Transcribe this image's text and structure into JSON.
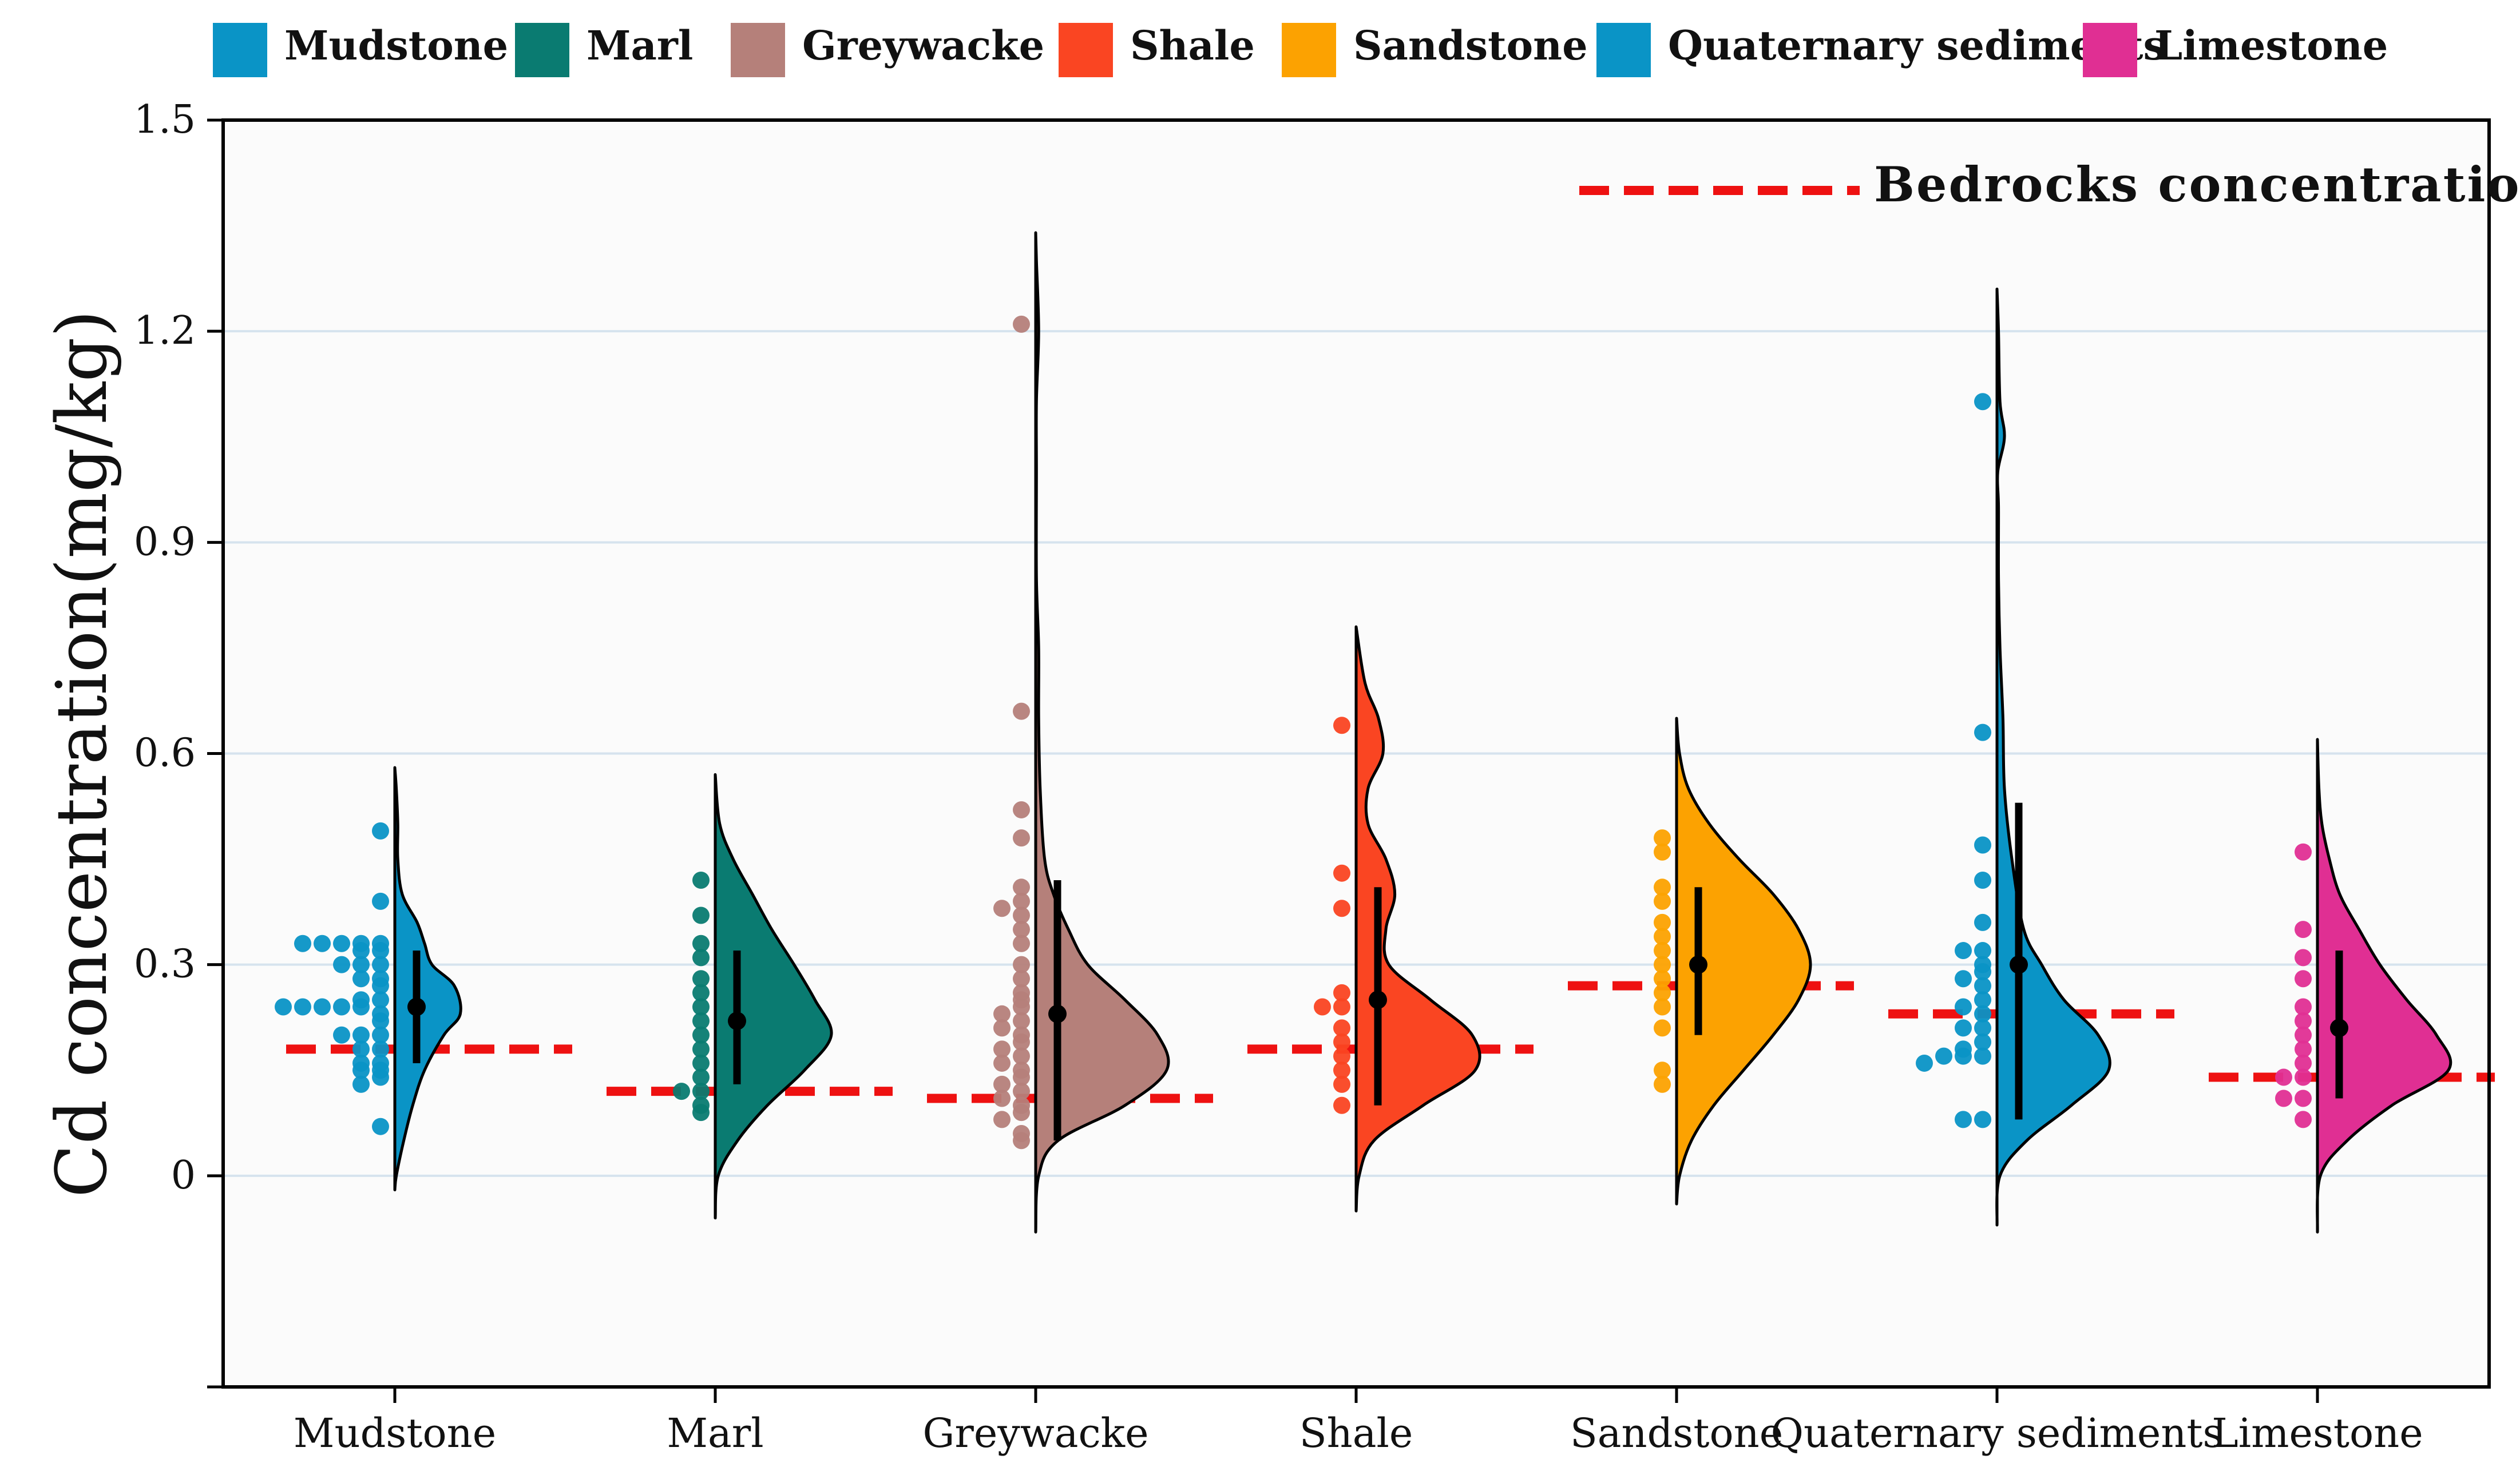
{
  "chart_data": {
    "type": "violin",
    "title": "",
    "xlabel": "",
    "ylabel": "Cd concentration(mg/kg)",
    "ylim": [
      -0.3,
      1.5
    ],
    "yticks": [
      "0",
      "0.3",
      "0.6",
      "0.9",
      "1.2",
      "1.5"
    ],
    "grid": "horizontal",
    "legend_position": "top",
    "bedrock_legend_label": "Bedrocks concentration",
    "bedrock_color": "#ee1111",
    "categories": [
      {
        "name": "Mudstone",
        "color": "#0a94c6",
        "mean": 0.24,
        "whisker": [
          0.16,
          0.32
        ],
        "bedrock": 0.18,
        "density_y": [
          -0.02,
          0.0,
          0.05,
          0.1,
          0.15,
          0.2,
          0.23,
          0.27,
          0.3,
          0.33,
          0.36,
          0.4,
          0.45,
          0.5,
          0.55,
          0.58
        ],
        "density_w": [
          0,
          0.01,
          0.06,
          0.12,
          0.2,
          0.33,
          0.44,
          0.4,
          0.25,
          0.2,
          0.15,
          0.05,
          0.02,
          0.02,
          0.01,
          0
        ],
        "points": [
          0.23,
          0.24,
          0.24,
          0.24,
          0.24,
          0.24,
          0.22,
          0.33,
          0.33,
          0.33,
          0.33,
          0.33,
          0.32,
          0.32,
          0.3,
          0.3,
          0.3,
          0.28,
          0.28,
          0.27,
          0.25,
          0.25,
          0.2,
          0.2,
          0.2,
          0.18,
          0.18,
          0.16,
          0.16,
          0.15,
          0.15,
          0.14,
          0.13,
          0.39,
          0.49,
          0.07
        ]
      },
      {
        "name": "Marl",
        "color": "#0a7b71",
        "mean": 0.22,
        "whisker": [
          0.13,
          0.32
        ],
        "bedrock": 0.12,
        "density_y": [
          -0.06,
          0.0,
          0.05,
          0.1,
          0.15,
          0.2,
          0.25,
          0.3,
          0.35,
          0.4,
          0.45,
          0.5,
          0.57
        ],
        "density_w": [
          0,
          0.02,
          0.15,
          0.35,
          0.6,
          0.78,
          0.67,
          0.53,
          0.38,
          0.25,
          0.12,
          0.03,
          0
        ],
        "points": [
          0.12,
          0.42,
          0.37,
          0.33,
          0.31,
          0.28,
          0.26,
          0.24,
          0.22,
          0.2,
          0.18,
          0.16,
          0.14,
          0.12,
          0.1,
          0.09
        ]
      },
      {
        "name": "Greywacke",
        "color": "#b5807a",
        "mean": 0.23,
        "whisker": [
          0.05,
          0.42
        ],
        "bedrock": 0.11,
        "density_y": [
          -0.08,
          0.0,
          0.05,
          0.1,
          0.15,
          0.2,
          0.25,
          0.3,
          0.35,
          0.4,
          0.45,
          0.55,
          0.65,
          0.75,
          0.85,
          1.0,
          1.1,
          1.2,
          1.3,
          1.34
        ],
        "density_w": [
          0,
          0.02,
          0.15,
          0.6,
          0.88,
          0.82,
          0.6,
          0.35,
          0.22,
          0.12,
          0.06,
          0.03,
          0.02,
          0.02,
          0.005,
          0.005,
          0.005,
          0.02,
          0.005,
          0
        ],
        "points": [
          0.24,
          1.21,
          0.66,
          0.52,
          0.48,
          0.41,
          0.39,
          0.38,
          0.37,
          0.35,
          0.33,
          0.3,
          0.28,
          0.26,
          0.25,
          0.23,
          0.22,
          0.21,
          0.2,
          0.19,
          0.18,
          0.17,
          0.16,
          0.15,
          0.14,
          0.13,
          0.12,
          0.11,
          0.1,
          0.09,
          0.08,
          0.06,
          0.05
        ]
      },
      {
        "name": "Shale",
        "color": "#fa4522",
        "mean": 0.25,
        "whisker": [
          0.1,
          0.41
        ],
        "bedrock": 0.18,
        "density_y": [
          -0.05,
          0.0,
          0.05,
          0.1,
          0.15,
          0.2,
          0.25,
          0.3,
          0.35,
          0.4,
          0.45,
          0.5,
          0.55,
          0.6,
          0.65,
          0.7,
          0.78
        ],
        "density_w": [
          0,
          0.02,
          0.12,
          0.45,
          0.8,
          0.78,
          0.5,
          0.22,
          0.2,
          0.26,
          0.2,
          0.08,
          0.08,
          0.18,
          0.15,
          0.06,
          0
        ],
        "points": [
          0.24,
          0.64,
          0.43,
          0.38,
          0.24,
          0.19,
          0.17,
          0.15,
          0.13,
          0.1,
          0.26,
          0.21
        ]
      },
      {
        "name": "Sandstone",
        "color": "#fca201",
        "mean": 0.3,
        "whisker": [
          0.2,
          0.41
        ],
        "bedrock": 0.27,
        "density_y": [
          -0.04,
          0.0,
          0.05,
          0.1,
          0.15,
          0.2,
          0.25,
          0.3,
          0.35,
          0.4,
          0.45,
          0.5,
          0.55,
          0.6,
          0.65
        ],
        "density_w": [
          0,
          0.02,
          0.1,
          0.25,
          0.45,
          0.65,
          0.82,
          0.9,
          0.82,
          0.65,
          0.42,
          0.22,
          0.08,
          0.02,
          0
        ],
        "points": [
          0.48,
          0.46,
          0.41,
          0.39,
          0.36,
          0.34,
          0.32,
          0.3,
          0.28,
          0.26,
          0.24,
          0.21,
          0.15,
          0.13
        ]
      },
      {
        "name": "Quaternary sediments",
        "color": "#0a94c6",
        "mean": 0.3,
        "whisker": [
          0.08,
          0.53
        ],
        "bedrock": 0.23,
        "density_y": [
          -0.07,
          0.0,
          0.05,
          0.1,
          0.15,
          0.2,
          0.25,
          0.3,
          0.35,
          0.45,
          0.55,
          0.65,
          0.75,
          0.85,
          0.95,
          1.0,
          1.05,
          1.1,
          1.2,
          1.26
        ],
        "density_w": [
          0,
          0.02,
          0.2,
          0.5,
          0.75,
          0.68,
          0.45,
          0.3,
          0.18,
          0.1,
          0.05,
          0.04,
          0.02,
          0.01,
          0.01,
          0.005,
          0.05,
          0.02,
          0.01,
          0
        ],
        "points": [
          0.17,
          0.17,
          1.1,
          0.63,
          0.47,
          0.42,
          0.36,
          0.32,
          0.3,
          0.29,
          0.27,
          0.25,
          0.23,
          0.21,
          0.19,
          0.17,
          0.08,
          0.32,
          0.28,
          0.24,
          0.21,
          0.18,
          0.16,
          0.08
        ]
      },
      {
        "name": "Limestone",
        "color": "#e02f93",
        "mean": 0.21,
        "whisker": [
          0.11,
          0.32
        ],
        "bedrock": 0.14,
        "density_y": [
          -0.08,
          0.0,
          0.05,
          0.1,
          0.15,
          0.2,
          0.25,
          0.3,
          0.35,
          0.4,
          0.45,
          0.5,
          0.55,
          0.62
        ],
        "density_w": [
          0,
          0.02,
          0.2,
          0.5,
          0.88,
          0.8,
          0.6,
          0.42,
          0.28,
          0.15,
          0.08,
          0.03,
          0.01,
          0
        ],
        "points": [
          0.14,
          0.11,
          0.46,
          0.35,
          0.31,
          0.28,
          0.24,
          0.22,
          0.2,
          0.18,
          0.16,
          0.14,
          0.11,
          0.08
        ]
      }
    ]
  }
}
